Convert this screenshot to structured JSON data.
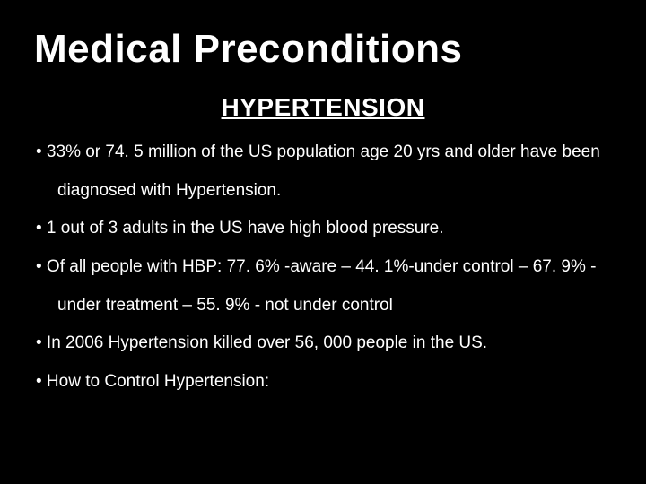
{
  "slide": {
    "title": "Medical Preconditions",
    "subtitle": "HYPERTENSION",
    "lines": [
      "•  33% or 74. 5 million of the US population age 20 yrs and older have been",
      "diagnosed with Hypertension.",
      "•  1 out of 3 adults in the US have high blood pressure.",
      "•   Of all people with HBP: 77. 6% -aware – 44. 1%-under control – 67. 9% -",
      "under treatment – 55. 9% - not under control",
      "•   In 2006 Hypertension killed over 56, 000 people in the US.",
      "•   How to Control Hypertension:"
    ]
  },
  "colors": {
    "background": "#000000",
    "text": "#ffffff"
  },
  "typography": {
    "title_fontsize": 44,
    "subtitle_fontsize": 28,
    "body_fontsize": 19
  }
}
